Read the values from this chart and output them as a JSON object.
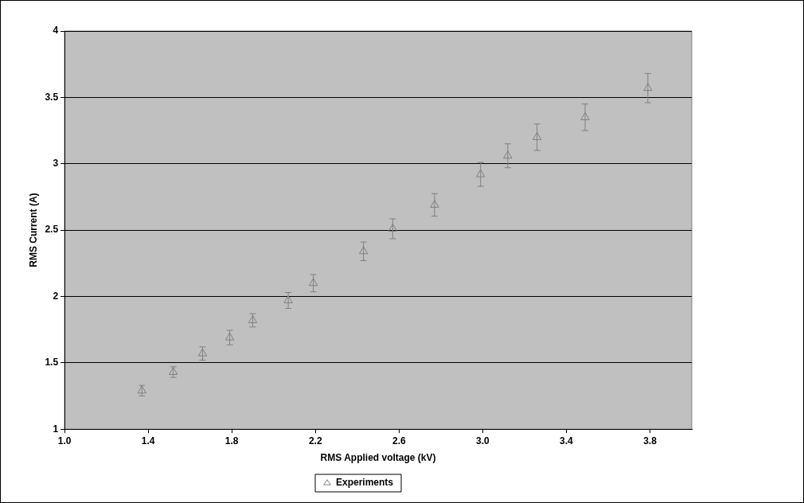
{
  "chart_data": {
    "type": "scatter",
    "xlabel": "RMS Applied voltage (kV)",
    "ylabel": "RMS Current (A)",
    "xlim": [
      1.0,
      4.0
    ],
    "xticks": [
      {
        "value": 1.0,
        "label": "1.0"
      },
      {
        "value": 1.4,
        "label": "1.4"
      },
      {
        "value": 1.8,
        "label": "1.8"
      },
      {
        "value": 2.2,
        "label": "2.2"
      },
      {
        "value": 2.6,
        "label": "2.6"
      },
      {
        "value": 3.0,
        "label": "3.0"
      },
      {
        "value": 3.4,
        "label": "3.4"
      },
      {
        "value": 3.8,
        "label": "3.8"
      }
    ],
    "ylim": [
      1,
      4
    ],
    "yticks": [
      1,
      1.5,
      2,
      2.5,
      3,
      3.5,
      4
    ],
    "grid": "y",
    "legend": "bottom",
    "marker": "triangle",
    "series": [
      {
        "name": "Experiments",
        "color": "#808080",
        "x": [
          1.37,
          1.52,
          1.66,
          1.79,
          1.9,
          2.07,
          2.19,
          2.43,
          2.57,
          2.77,
          2.99,
          3.12,
          3.26,
          3.49,
          3.79
        ],
        "values": [
          1.29,
          1.43,
          1.57,
          1.69,
          1.82,
          1.97,
          2.1,
          2.34,
          2.51,
          2.69,
          2.92,
          3.06,
          3.2,
          3.35,
          3.57
        ],
        "errors": [
          0.04,
          0.04,
          0.05,
          0.055,
          0.05,
          0.06,
          0.065,
          0.07,
          0.075,
          0.085,
          0.09,
          0.09,
          0.1,
          0.1,
          0.11
        ]
      }
    ]
  }
}
